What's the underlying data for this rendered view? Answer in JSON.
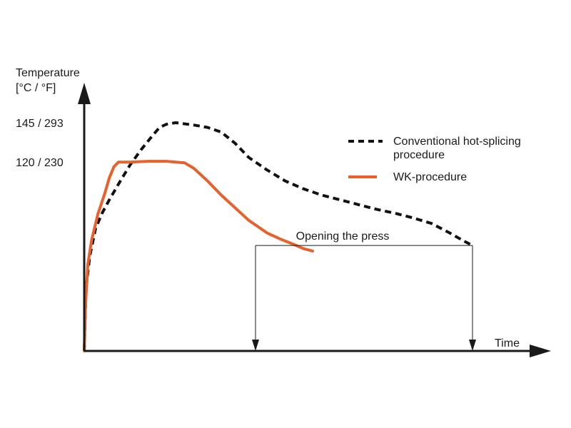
{
  "chart_data": {
    "type": "line",
    "ylabel_line1": "Temperature",
    "ylabel_line2": "[°C / °F]",
    "xlabel": "Time",
    "y_ticks": [
      {
        "value": 145,
        "label": "145 / 293"
      },
      {
        "value": 120,
        "label": "120 / 230"
      }
    ],
    "ylim": [
      0,
      160
    ],
    "xlim": [
      0,
      100
    ],
    "grid": false,
    "legend_position": "top-right",
    "annotation": "Opening the press",
    "annotation_x": [
      37.5,
      85
    ],
    "series": [
      {
        "name": "Conventional hot-splicing procedure",
        "name_line1": "Conventional hot-splicing",
        "name_line2": "procedure",
        "style": "dashed",
        "color": "#111111",
        "points": [
          [
            0,
            0
          ],
          [
            0.4,
            40
          ],
          [
            1.2,
            60
          ],
          [
            2.5,
            78
          ],
          [
            4,
            88
          ],
          [
            5.5,
            96
          ],
          [
            7.5,
            106
          ],
          [
            10,
            118
          ],
          [
            12.5,
            128
          ],
          [
            15,
            137
          ],
          [
            16.5,
            142
          ],
          [
            18,
            144
          ],
          [
            20,
            145
          ],
          [
            24,
            143.5
          ],
          [
            27,
            142
          ],
          [
            30,
            139
          ],
          [
            33,
            132
          ],
          [
            36,
            123
          ],
          [
            40,
            115
          ],
          [
            44,
            108
          ],
          [
            48,
            103
          ],
          [
            52,
            99
          ],
          [
            56,
            96
          ],
          [
            60,
            93
          ],
          [
            64,
            90
          ],
          [
            68,
            87.5
          ],
          [
            72,
            84.5
          ],
          [
            76,
            81
          ],
          [
            80,
            75
          ],
          [
            83,
            70
          ],
          [
            85,
            67
          ]
        ]
      },
      {
        "name": "WK-procedure",
        "style": "solid",
        "color": "#E8612C",
        "points": [
          [
            0,
            0
          ],
          [
            0.3,
            30
          ],
          [
            0.8,
            55
          ],
          [
            1.6,
            70
          ],
          [
            3,
            87
          ],
          [
            4.5,
            100
          ],
          [
            5.5,
            110
          ],
          [
            6.5,
            117
          ],
          [
            7.5,
            120
          ],
          [
            10,
            120
          ],
          [
            14,
            120.5
          ],
          [
            18,
            120.5
          ],
          [
            22,
            119.5
          ],
          [
            24,
            116
          ],
          [
            27,
            108
          ],
          [
            30,
            99
          ],
          [
            33,
            91
          ],
          [
            36,
            83
          ],
          [
            37.5,
            80
          ],
          [
            40,
            75
          ],
          [
            43,
            71
          ],
          [
            46,
            67.5
          ],
          [
            48,
            65
          ],
          [
            50,
            63.5
          ]
        ]
      }
    ]
  }
}
